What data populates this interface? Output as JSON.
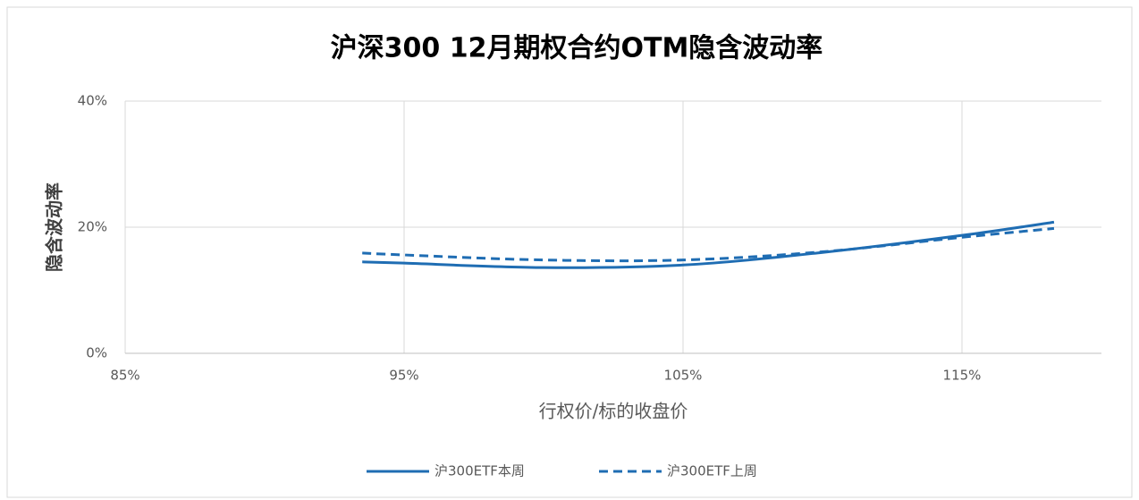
{
  "chart_data": {
    "type": "line",
    "title": "沪深300 12月期权合约OTM隐含波动率",
    "xlabel": "行权价/标的收盘价",
    "ylabel": "隐含波动率",
    "x": [
      93.5,
      95,
      100,
      105,
      110,
      115,
      118.3
    ],
    "series": [
      {
        "name": "沪300ETF本周",
        "color": "#1f6db3",
        "dash": false,
        "values": [
          14.5,
          14.3,
          13.6,
          14.0,
          16.0,
          18.7,
          20.8
        ]
      },
      {
        "name": "沪300ETF上周",
        "color": "#1f6db3",
        "dash": true,
        "values": [
          15.9,
          15.6,
          14.8,
          14.8,
          16.1,
          18.4,
          19.8
        ]
      }
    ],
    "xlim": [
      85,
      120
    ],
    "xticks": [
      {
        "value": 85,
        "label": "85%"
      },
      {
        "value": 95,
        "label": "95%"
      },
      {
        "value": 105,
        "label": "105%"
      },
      {
        "value": 115,
        "label": "115%"
      }
    ],
    "ylim": [
      0,
      40
    ],
    "yticks": [
      {
        "value": 0,
        "label": "0%"
      },
      {
        "value": 20,
        "label": "20%"
      },
      {
        "value": 40,
        "label": "40%"
      }
    ],
    "grid": true,
    "legend": "bottom"
  }
}
